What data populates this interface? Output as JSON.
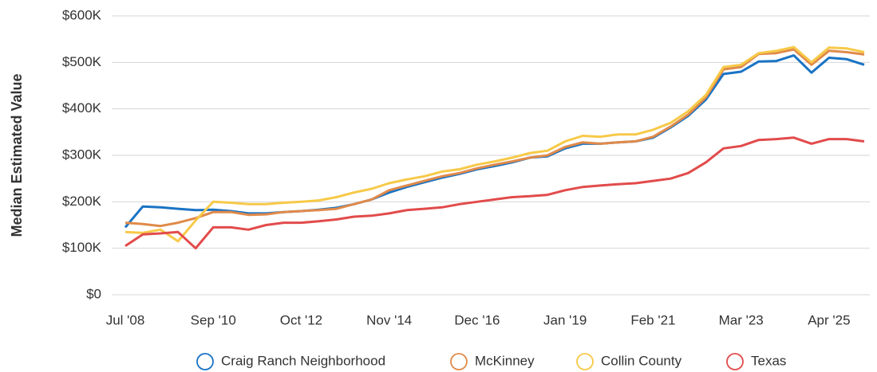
{
  "chart_data": {
    "type": "line",
    "y_label": "Median Estimated Value",
    "categories": [
      "Jul '08",
      null,
      null,
      null,
      null,
      "Sep '10",
      null,
      null,
      null,
      null,
      "Oct '12",
      null,
      null,
      null,
      null,
      "Nov '14",
      null,
      null,
      null,
      null,
      "Dec '16",
      null,
      null,
      null,
      null,
      "Jan '19",
      null,
      null,
      null,
      null,
      "Feb '21",
      null,
      null,
      null,
      null,
      "Mar '23",
      null,
      null,
      null,
      null,
      "Apr '25",
      null,
      null
    ],
    "series": [
      {
        "name": "Craig Ranch Neighborhood",
        "color": "#1a73c4",
        "values": [
          145000,
          190000,
          188000,
          185000,
          182000,
          183000,
          180000,
          175000,
          175000,
          178000,
          180000,
          183000,
          187000,
          195000,
          205000,
          220000,
          232000,
          242000,
          252000,
          260000,
          270000,
          277000,
          285000,
          295000,
          298000,
          315000,
          325000,
          325000,
          328000,
          330000,
          338000,
          360000,
          385000,
          420000,
          475000,
          480000,
          502000,
          503000,
          515000,
          478000,
          510000,
          507000,
          495000
        ]
      },
      {
        "name": "McKinney",
        "color": "#e08a4a",
        "values": [
          155000,
          152000,
          148000,
          155000,
          165000,
          178000,
          178000,
          172000,
          173000,
          178000,
          180000,
          182000,
          185000,
          195000,
          205000,
          225000,
          235000,
          245000,
          255000,
          262000,
          272000,
          280000,
          287000,
          295000,
          300000,
          318000,
          328000,
          325000,
          328000,
          330000,
          340000,
          362000,
          388000,
          425000,
          485000,
          490000,
          518000,
          520000,
          528000,
          495000,
          525000,
          522000,
          517000
        ]
      },
      {
        "name": "Collin County",
        "color": "#f7c948",
        "values": [
          135000,
          133000,
          140000,
          115000,
          160000,
          200000,
          198000,
          195000,
          195000,
          198000,
          200000,
          203000,
          210000,
          220000,
          228000,
          240000,
          248000,
          255000,
          265000,
          270000,
          280000,
          287000,
          295000,
          305000,
          310000,
          330000,
          342000,
          340000,
          345000,
          345000,
          355000,
          370000,
          395000,
          430000,
          490000,
          495000,
          520000,
          525000,
          533000,
          500000,
          532000,
          530000,
          522000
        ]
      },
      {
        "name": "Texas",
        "color": "#e24b4b",
        "values": [
          105000,
          130000,
          132000,
          135000,
          100000,
          145000,
          145000,
          140000,
          150000,
          155000,
          155000,
          158000,
          162000,
          168000,
          170000,
          175000,
          182000,
          185000,
          188000,
          195000,
          200000,
          205000,
          210000,
          212000,
          215000,
          225000,
          232000,
          235000,
          238000,
          240000,
          245000,
          250000,
          262000,
          285000,
          315000,
          320000,
          333000,
          335000,
          338000,
          325000,
          335000,
          335000,
          330000
        ]
      }
    ],
    "ylim": [
      0,
      600000
    ],
    "yticks": [
      {
        "value": 0,
        "label": "$0"
      },
      {
        "value": 100000,
        "label": "$100K"
      },
      {
        "value": 200000,
        "label": "$200K"
      },
      {
        "value": 300000,
        "label": "$300K"
      },
      {
        "value": 400000,
        "label": "$400K"
      },
      {
        "value": 500000,
        "label": "$500K"
      },
      {
        "value": 600000,
        "label": "$600K"
      }
    ],
    "grid": true,
    "legend": "bottom"
  }
}
